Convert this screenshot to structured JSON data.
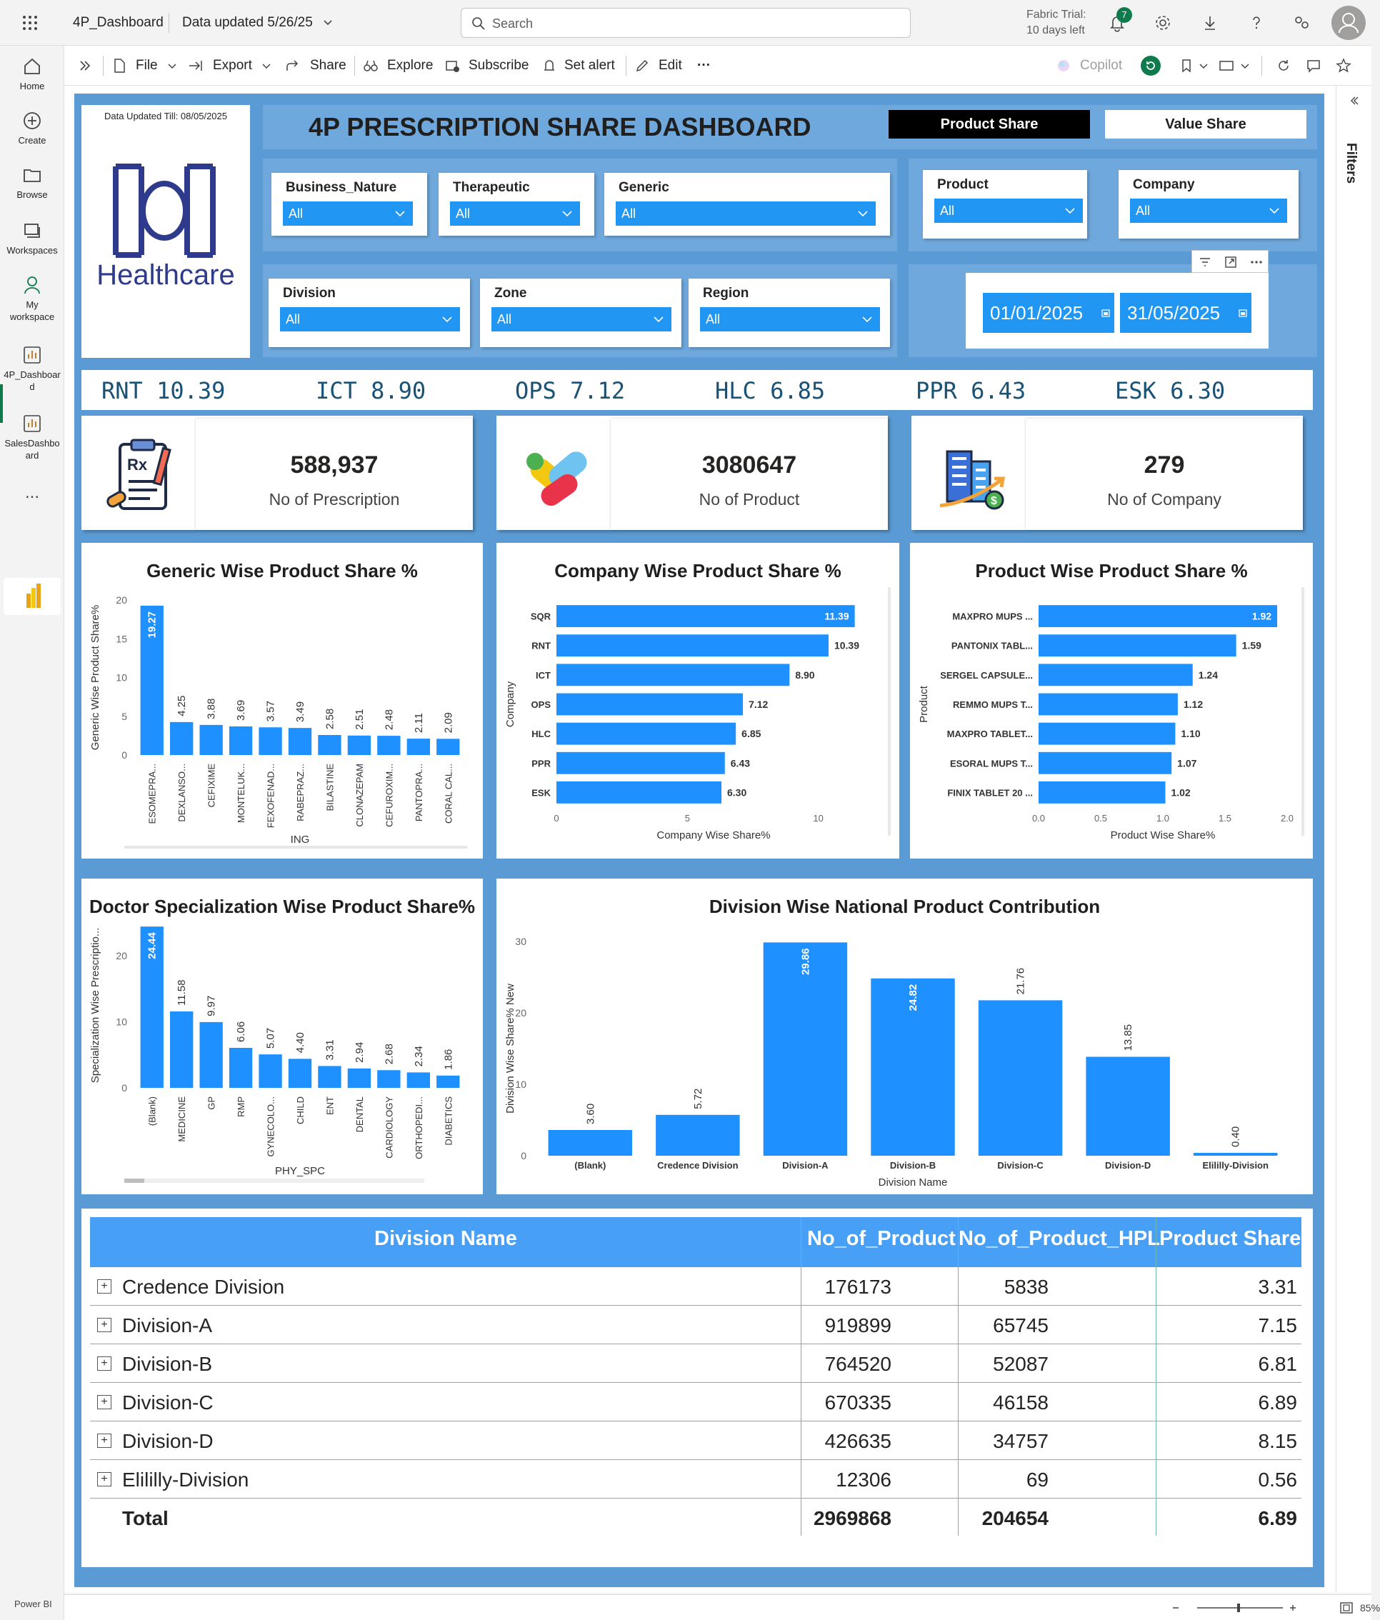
{
  "topbar": {
    "app_name": "4P_Dashboard",
    "data_updated": "Data updated 5/26/25",
    "search_placeholder": "Search",
    "trial_line1": "Fabric Trial:",
    "trial_line2": "10 days left",
    "notification_count": "7"
  },
  "leftnav": {
    "items": [
      {
        "label": "Home",
        "icon": "home-icon"
      },
      {
        "label": "Create",
        "icon": "create-icon"
      },
      {
        "label": "Browse",
        "icon": "browse-icon"
      },
      {
        "label": "Workspaces",
        "icon": "workspaces-icon"
      },
      {
        "label": "My workspace",
        "icon": "my-workspace-icon"
      },
      {
        "label": "4P_Dashboard",
        "icon": "report-icon"
      },
      {
        "label": "SalesDashboard",
        "icon": "report-icon"
      }
    ],
    "more": "...",
    "footer": "Power BI"
  },
  "actionbar": {
    "file": "File",
    "export": "Export",
    "share": "Share",
    "explore": "Explore",
    "subscribe": "Subscribe",
    "set_alert": "Set alert",
    "edit": "Edit",
    "more": "···",
    "copilot": "Copilot"
  },
  "filters_pane": {
    "label": "Filters"
  },
  "statusbar": {
    "zoom": "85%"
  },
  "report": {
    "data_updated": "Data Updated Till: 08/05/2025",
    "logo_text": "Healthcare",
    "title": "4P PRESCRIPTION SHARE DASHBOARD",
    "toggle": {
      "product_share": "Product Share",
      "value_share": "Value Share"
    },
    "slicers": {
      "business_nature": {
        "label": "Business_Nature",
        "value": "All"
      },
      "therapeutic": {
        "label": "Therapeutic",
        "value": "All"
      },
      "generic": {
        "label": "Generic",
        "value": "All"
      },
      "product": {
        "label": "Product",
        "value": "All"
      },
      "company": {
        "label": "Company",
        "value": "All"
      },
      "division": {
        "label": "Division",
        "value": "All"
      },
      "zone": {
        "label": "Zone",
        "value": "All"
      },
      "region": {
        "label": "Region",
        "value": "All"
      }
    },
    "date_range": {
      "start": "01/01/2025",
      "end": "31/05/2025"
    },
    "ticker": [
      {
        "code": "RNT",
        "value": "10.39"
      },
      {
        "code": "ICT",
        "value": "8.90"
      },
      {
        "code": "OPS",
        "value": "7.12"
      },
      {
        "code": "HLC",
        "value": "6.85"
      },
      {
        "code": "PPR",
        "value": "6.43"
      },
      {
        "code": "ESK",
        "value": "6.30"
      }
    ],
    "kpis": [
      {
        "value": "588,937",
        "label": "No of Prescription",
        "icon": "prescription-icon"
      },
      {
        "value": "3080647",
        "label": "No of Product",
        "icon": "pills-icon"
      },
      {
        "value": "279",
        "label": "No of Company",
        "icon": "company-growth-icon"
      }
    ],
    "table": {
      "headers": [
        "Division Name",
        "No_of_Product",
        "No_of_Product_HPL",
        "Product Share"
      ],
      "rows": [
        {
          "name": "Credence Division",
          "no_of_product": "176173",
          "no_hpl": "5838",
          "share": "3.31"
        },
        {
          "name": "Division-A",
          "no_of_product": "919899",
          "no_hpl": "65745",
          "share": "7.15"
        },
        {
          "name": "Division-B",
          "no_of_product": "764520",
          "no_hpl": "52087",
          "share": "6.81"
        },
        {
          "name": "Division-C",
          "no_of_product": "670335",
          "no_hpl": "46158",
          "share": "6.89"
        },
        {
          "name": "Division-D",
          "no_of_product": "426635",
          "no_hpl": "34757",
          "share": "8.15"
        },
        {
          "name": "Elililly-Division",
          "no_of_product": "12306",
          "no_hpl": "69",
          "share": "0.56"
        }
      ],
      "total": {
        "name": "Total",
        "no_of_product": "2969868",
        "no_hpl": "204654",
        "share": "6.89"
      }
    }
  },
  "colors": {
    "bar": "#1e90ff",
    "report_bg": "#5b9bd5",
    "header_blue": "#47a0f5",
    "slicer_blue": "#2196f3"
  },
  "chart_data": [
    {
      "id": "generic",
      "type": "bar",
      "orientation": "vertical",
      "title": "Generic Wise Product Share %",
      "xlabel": "ING",
      "ylabel": "Generic Wise Product Share%",
      "ylim": [
        0,
        20
      ],
      "yticks": [
        0,
        5,
        10,
        15,
        20
      ],
      "categories": [
        "ESOMEPRA...",
        "DEXLANSO...",
        "CEFIXIME",
        "MONTELUK...",
        "FEXOFENAD...",
        "RABEPRAZ...",
        "BILASTINE",
        "CLONAZEPAM",
        "CEFUROXIM...",
        "PANTOPRA...",
        "CORAL CAL..."
      ],
      "values": [
        19.27,
        4.25,
        3.88,
        3.69,
        3.57,
        3.49,
        2.58,
        2.51,
        2.48,
        2.11,
        2.09
      ]
    },
    {
      "id": "company",
      "type": "bar",
      "orientation": "horizontal",
      "title": "Company Wise Product Share %",
      "xlabel": "Company Wise Share%",
      "ylabel": "Company",
      "xlim": [
        0,
        12
      ],
      "xticks": [
        0,
        5,
        10
      ],
      "categories": [
        "SQR",
        "RNT",
        "ICT",
        "OPS",
        "HLC",
        "PPR",
        "ESK"
      ],
      "values": [
        11.39,
        10.39,
        8.9,
        7.12,
        6.85,
        6.43,
        6.3
      ]
    },
    {
      "id": "product",
      "type": "bar",
      "orientation": "horizontal",
      "title": "Product Wise Product Share %",
      "xlabel": "Product Wise Share%",
      "ylabel": "Product",
      "xlim": [
        0,
        2.0
      ],
      "xticks": [
        "0.0",
        "0.5",
        "1.0",
        "1.5",
        "2.0"
      ],
      "categories": [
        "MAXPRO MUPS ...",
        "PANTONIX TABL...",
        "SERGEL CAPSULE...",
        "REMMO MUPS T...",
        "MAXPRO TABLET...",
        "ESORAL MUPS T...",
        "FINIX TABLET 20 ..."
      ],
      "values": [
        1.92,
        1.59,
        1.24,
        1.12,
        1.1,
        1.07,
        1.02
      ]
    },
    {
      "id": "doctor",
      "type": "bar",
      "orientation": "vertical",
      "title": "Doctor Specialization Wise Product Share%",
      "xlabel": "PHY_SPC",
      "ylabel": "Specialization Wise Prescriptio...",
      "ylim": [
        0,
        25
      ],
      "yticks": [
        0,
        10,
        20
      ],
      "categories": [
        "(Blank)",
        "MEDICINE",
        "GP",
        "RMP",
        "GYNECOLO...",
        "CHILD",
        "ENT",
        "DENTAL",
        "CARDIOLOGY",
        "ORTHOPEDI...",
        "DIABETICS"
      ],
      "values": [
        24.44,
        11.58,
        9.97,
        6.06,
        5.07,
        4.4,
        3.31,
        2.94,
        2.68,
        2.34,
        1.86
      ]
    },
    {
      "id": "division",
      "type": "bar",
      "orientation": "vertical",
      "title": "Division Wise National Product Contribution",
      "xlabel": "Division Name",
      "ylabel": "Division Wise Share% New",
      "ylim": [
        0,
        30
      ],
      "yticks": [
        0,
        10,
        20,
        30
      ],
      "categories": [
        "(Blank)",
        "Credence Division",
        "Division-A",
        "Division-B",
        "Division-C",
        "Division-D",
        "Elililly-Division"
      ],
      "values": [
        3.6,
        5.72,
        29.86,
        24.82,
        21.76,
        13.85,
        0.4
      ]
    }
  ]
}
